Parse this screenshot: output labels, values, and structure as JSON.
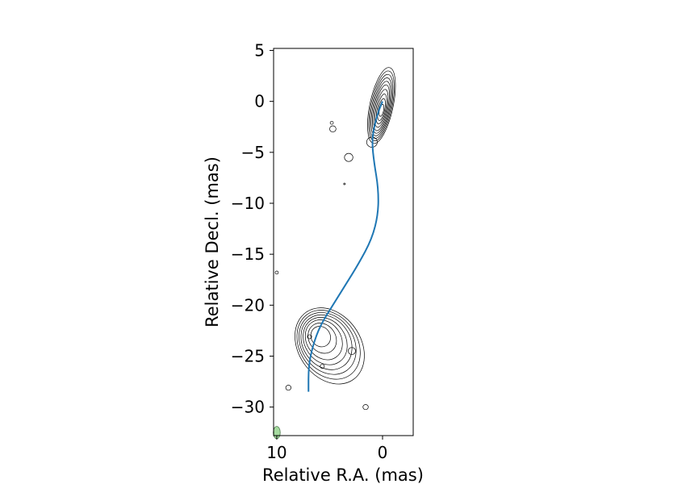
{
  "chart_data": {
    "type": "contour",
    "xlabel": "Relative R.A. (mas)",
    "ylabel": "Relative Decl. (mas)",
    "xlim": [
      10.3,
      -2.9
    ],
    "ylim": [
      -32.8,
      5.2
    ],
    "x_ticks": [
      10,
      0
    ],
    "y_ticks": [
      5,
      0,
      -5,
      -10,
      -15,
      -20,
      -25,
      -30
    ],
    "grid": false,
    "colors": {
      "jet_line": "#1f77b4",
      "contours": "#000000",
      "beam_fill": "#a6dba0",
      "beam_edge": "#4d7a4d"
    },
    "jet_ridge_line": [
      [
        0.0,
        0.0
      ],
      [
        0.4,
        -1.0
      ],
      [
        0.8,
        -2.5
      ],
      [
        1.0,
        -4.0
      ],
      [
        0.8,
        -6.0
      ],
      [
        0.4,
        -8.5
      ],
      [
        0.4,
        -11.0
      ],
      [
        1.0,
        -13.5
      ],
      [
        2.3,
        -16.0
      ],
      [
        3.5,
        -18.0
      ],
      [
        4.7,
        -20.0
      ],
      [
        5.9,
        -22.0
      ],
      [
        6.6,
        -24.0
      ],
      [
        7.0,
        -26.0
      ],
      [
        7.0,
        -28.5
      ]
    ],
    "core_contours": {
      "center": [
        0.1,
        -0.4
      ],
      "levels": [
        [
          1.1,
          3.8
        ],
        [
          1.0,
          3.5
        ],
        [
          0.9,
          3.2
        ],
        [
          0.8,
          2.9
        ],
        [
          0.7,
          2.6
        ],
        [
          0.6,
          2.3
        ],
        [
          0.5,
          1.9
        ],
        [
          0.4,
          1.5
        ],
        [
          0.3,
          1.1
        ],
        [
          0.2,
          0.6
        ]
      ]
    },
    "lobe_contours": {
      "center": [
        5.0,
        -24.0
      ],
      "levels": [
        [
          4.9,
          3.1
        ],
        [
          4.5,
          2.8
        ],
        [
          4.1,
          2.5
        ],
        [
          3.7,
          2.2
        ],
        [
          3.2,
          1.9
        ],
        [
          2.7,
          1.6
        ],
        [
          2.1,
          1.2
        ],
        [
          1.5,
          0.8
        ]
      ]
    },
    "small_contours": [
      {
        "x": 1.0,
        "y": -4.0,
        "r": 0.5
      },
      {
        "x": 3.2,
        "y": -5.5,
        "r": 0.4
      },
      {
        "x": 4.7,
        "y": -2.7,
        "r": 0.3
      },
      {
        "x": 4.8,
        "y": -2.1,
        "r": 0.15
      },
      {
        "x": 3.6,
        "y": -8.1,
        "r": 0.08
      },
      {
        "x": 10.0,
        "y": -16.8,
        "r": 0.15
      },
      {
        "x": 8.9,
        "y": -28.1,
        "r": 0.25
      },
      {
        "x": 1.6,
        "y": -30.0,
        "r": 0.25
      },
      {
        "x": 2.9,
        "y": -24.5,
        "r": 0.35
      },
      {
        "x": 5.7,
        "y": -26.0,
        "r": 0.2
      },
      {
        "x": 6.9,
        "y": -23.1,
        "r": 0.2
      }
    ],
    "beam": {
      "x": 10.0,
      "y": -32.5,
      "size": 0.6
    }
  }
}
